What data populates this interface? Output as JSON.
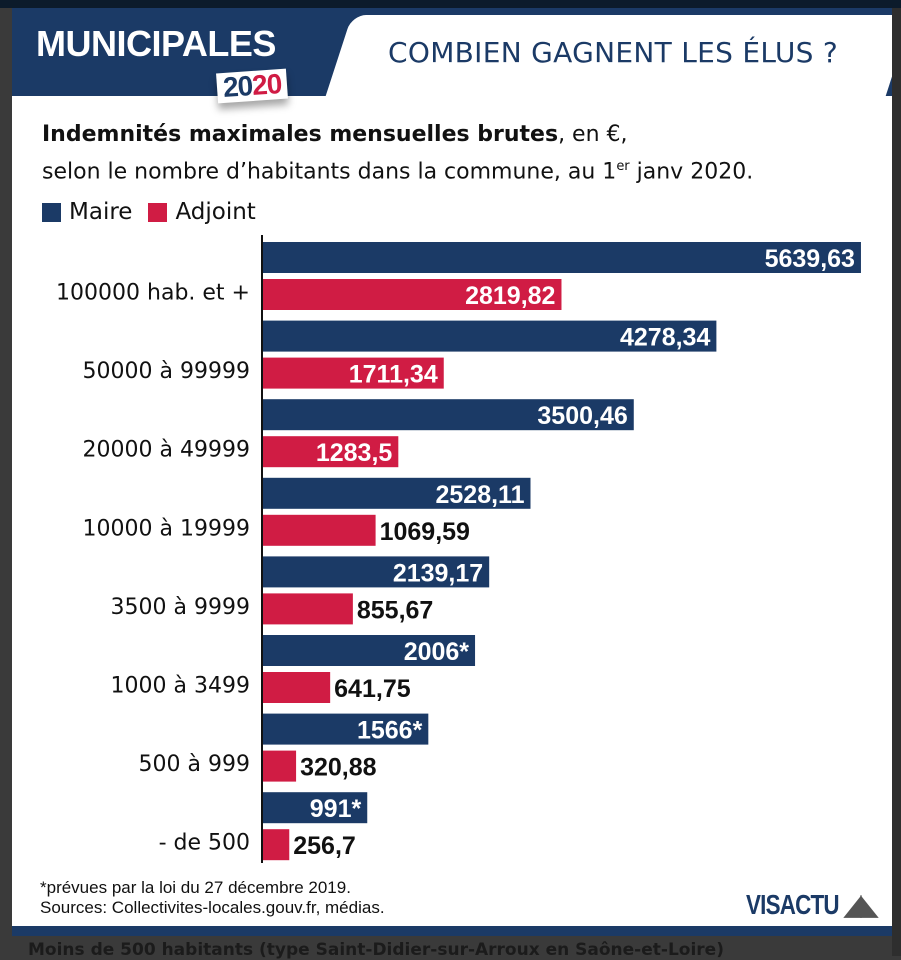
{
  "header": {
    "logo_text": "MUNICIPALES",
    "logo_year_a": "20",
    "logo_year_b": "20",
    "title": "COMBIEN GAGNENT LES ÉLUS ?"
  },
  "chart_data": {
    "type": "bar",
    "orientation": "horizontal",
    "title_bold": "Indemnités maximales mensuelles brutes",
    "title_rest": ", en €,",
    "subtitle_a": "selon le nombre d’habitants dans la commune, au 1",
    "subtitle_sup": "er",
    "subtitle_b": " janv 2020.",
    "categories": [
      "100000 hab. et +",
      "50000 à 99999",
      "20000 à 49999",
      "10000 à 19999",
      "3500 à 9999",
      "1000 à 3499",
      "500 à 999",
      "- de 500"
    ],
    "series": [
      {
        "name": "Maire",
        "color": "#1b3a66",
        "values": [
          5639.63,
          4278.34,
          3500.46,
          2528.11,
          2139.17,
          2006,
          1566,
          991
        ],
        "labels": [
          "5639,63",
          "4278,34",
          "3500,46",
          "2528,11",
          "2139,17",
          "2006*",
          "1566*",
          "991*"
        ]
      },
      {
        "name": "Adjoint",
        "color": "#d01c44",
        "values": [
          2819.82,
          1711.34,
          1283.5,
          1069.59,
          855.67,
          641.75,
          320.88,
          256.7
        ],
        "labels": [
          "2819,82",
          "1711,34",
          "1283,5",
          "1069,59",
          "855,67",
          "641,75",
          "320,88",
          "256,7"
        ]
      }
    ],
    "xlim": [
      0,
      5640
    ],
    "grid": false,
    "legend_position": "top-left"
  },
  "footer": {
    "note": "*prévues par la loi du 27 décembre 2019.",
    "sources": "Sources: Collectivites-locales.gouv.fr, médias.",
    "brand": "VISACTU"
  },
  "below_text": "Moins de 500 habitants (type Saint-Didier-sur-Arroux en Saône-et-Loire)"
}
